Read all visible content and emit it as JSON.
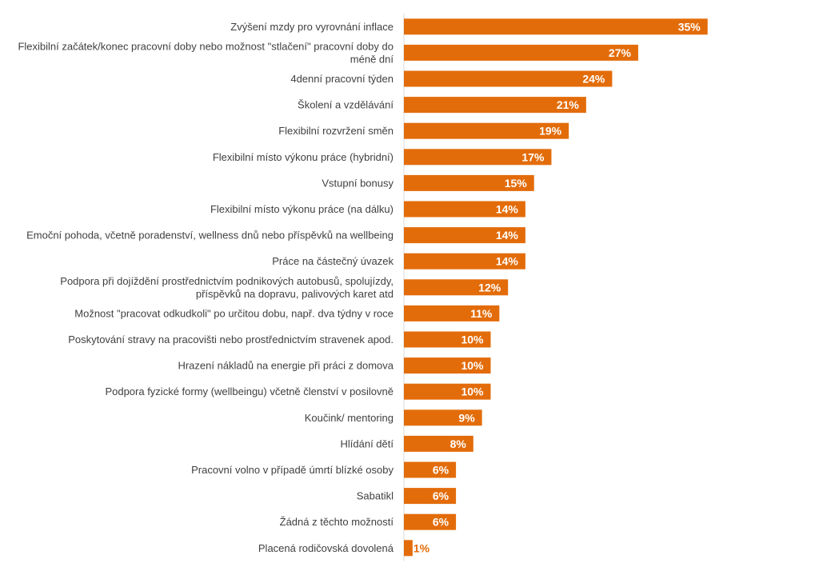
{
  "chart_data": {
    "type": "bar",
    "orientation": "horizontal",
    "categories": [
      "Zvýšení mzdy pro vyrovnání inflace",
      "Flexibilní začátek/konec pracovní doby nebo možnost \"stlačení\" pracovní doby do méně dní",
      "4denní pracovní týden",
      "Školení a vzdělávání",
      "Flexibilní rozvržení směn",
      "Flexibilní místo výkonu práce (hybridní)",
      "Vstupní bonusy",
      "Flexibilní místo výkonu práce (na dálku)",
      "Emoční pohoda, včetně poradenství, wellness dnů nebo příspěvků na wellbeing",
      "Práce na částečný úvazek",
      "Podpora při dojíždění prostřednictvím podnikových autobusů, spolujízdy, příspěvků na dopravu, palivových karet atd",
      "Možnost \"pracovat odkudkoli\" po určitou dobu, např. dva týdny v roce",
      "Poskytování stravy na pracovišti nebo prostřednictvím stravenek apod.",
      "Hrazení nákladů na energie při práci z domova",
      "Podpora fyzické formy (wellbeingu) včetně členství v posilovně",
      "Koučink/ mentoring",
      "Hlídání dětí",
      "Pracovní volno v případě úmrtí blízké osoby",
      "Sabatikl",
      "Žádná z těchto možností",
      "Placená rodičovská dovolená"
    ],
    "category_lines": [
      [
        "Zvýšení mzdy pro vyrovnání inflace"
      ],
      [
        "Flexibilní začátek/konec pracovní doby nebo možnost \"stlačení\" pracovní doby do",
        "méně dní"
      ],
      [
        "4denní pracovní týden"
      ],
      [
        "Školení a vzdělávání"
      ],
      [
        "Flexibilní rozvržení směn"
      ],
      [
        "Flexibilní místo výkonu práce (hybridní)"
      ],
      [
        "Vstupní bonusy"
      ],
      [
        "Flexibilní místo výkonu práce (na dálku)"
      ],
      [
        "Emoční pohoda, včetně poradenství, wellness dnů nebo příspěvků na wellbeing"
      ],
      [
        "Práce na částečný úvazek"
      ],
      [
        "Podpora při dojíždění prostřednictvím podnikových autobusů, spolujízdy,",
        "příspěvků na dopravu, palivových karet atd"
      ],
      [
        "Možnost \"pracovat odkudkoli\" po určitou dobu, např. dva týdny v roce"
      ],
      [
        "Poskytování stravy na pracovišti nebo prostřednictvím stravenek apod."
      ],
      [
        "Hrazení nákladů na energie při práci z domova"
      ],
      [
        "Podpora fyzické formy (wellbeingu) včetně členství v posilovně"
      ],
      [
        "Koučink/ mentoring"
      ],
      [
        "Hlídání dětí"
      ],
      [
        "Pracovní volno v případě úmrtí blízké osoby"
      ],
      [
        "Sabatikl"
      ],
      [
        "Žádná z těchto možností"
      ],
      [
        "Placená rodičovská dovolená"
      ]
    ],
    "values": [
      35,
      27,
      24,
      21,
      19,
      17,
      15,
      14,
      14,
      14,
      12,
      11,
      10,
      10,
      10,
      9,
      8,
      6,
      6,
      6,
      1
    ],
    "value_labels": [
      "35%",
      "27%",
      "24%",
      "21%",
      "19%",
      "17%",
      "15%",
      "14%",
      "14%",
      "14%",
      "12%",
      "11%",
      "10%",
      "10%",
      "10%",
      "9%",
      "8%",
      "6%",
      "6%",
      "6%",
      "1%"
    ],
    "unit": "%",
    "xlim": [
      0,
      43
    ],
    "grid": false,
    "legend": "none",
    "colors": {
      "bar": "#E36C0A",
      "value_label_inside": "#FFFFFF",
      "value_label_outside": "#E36C0A",
      "category_label": "#404040",
      "axis": "#D9D9D9"
    }
  }
}
